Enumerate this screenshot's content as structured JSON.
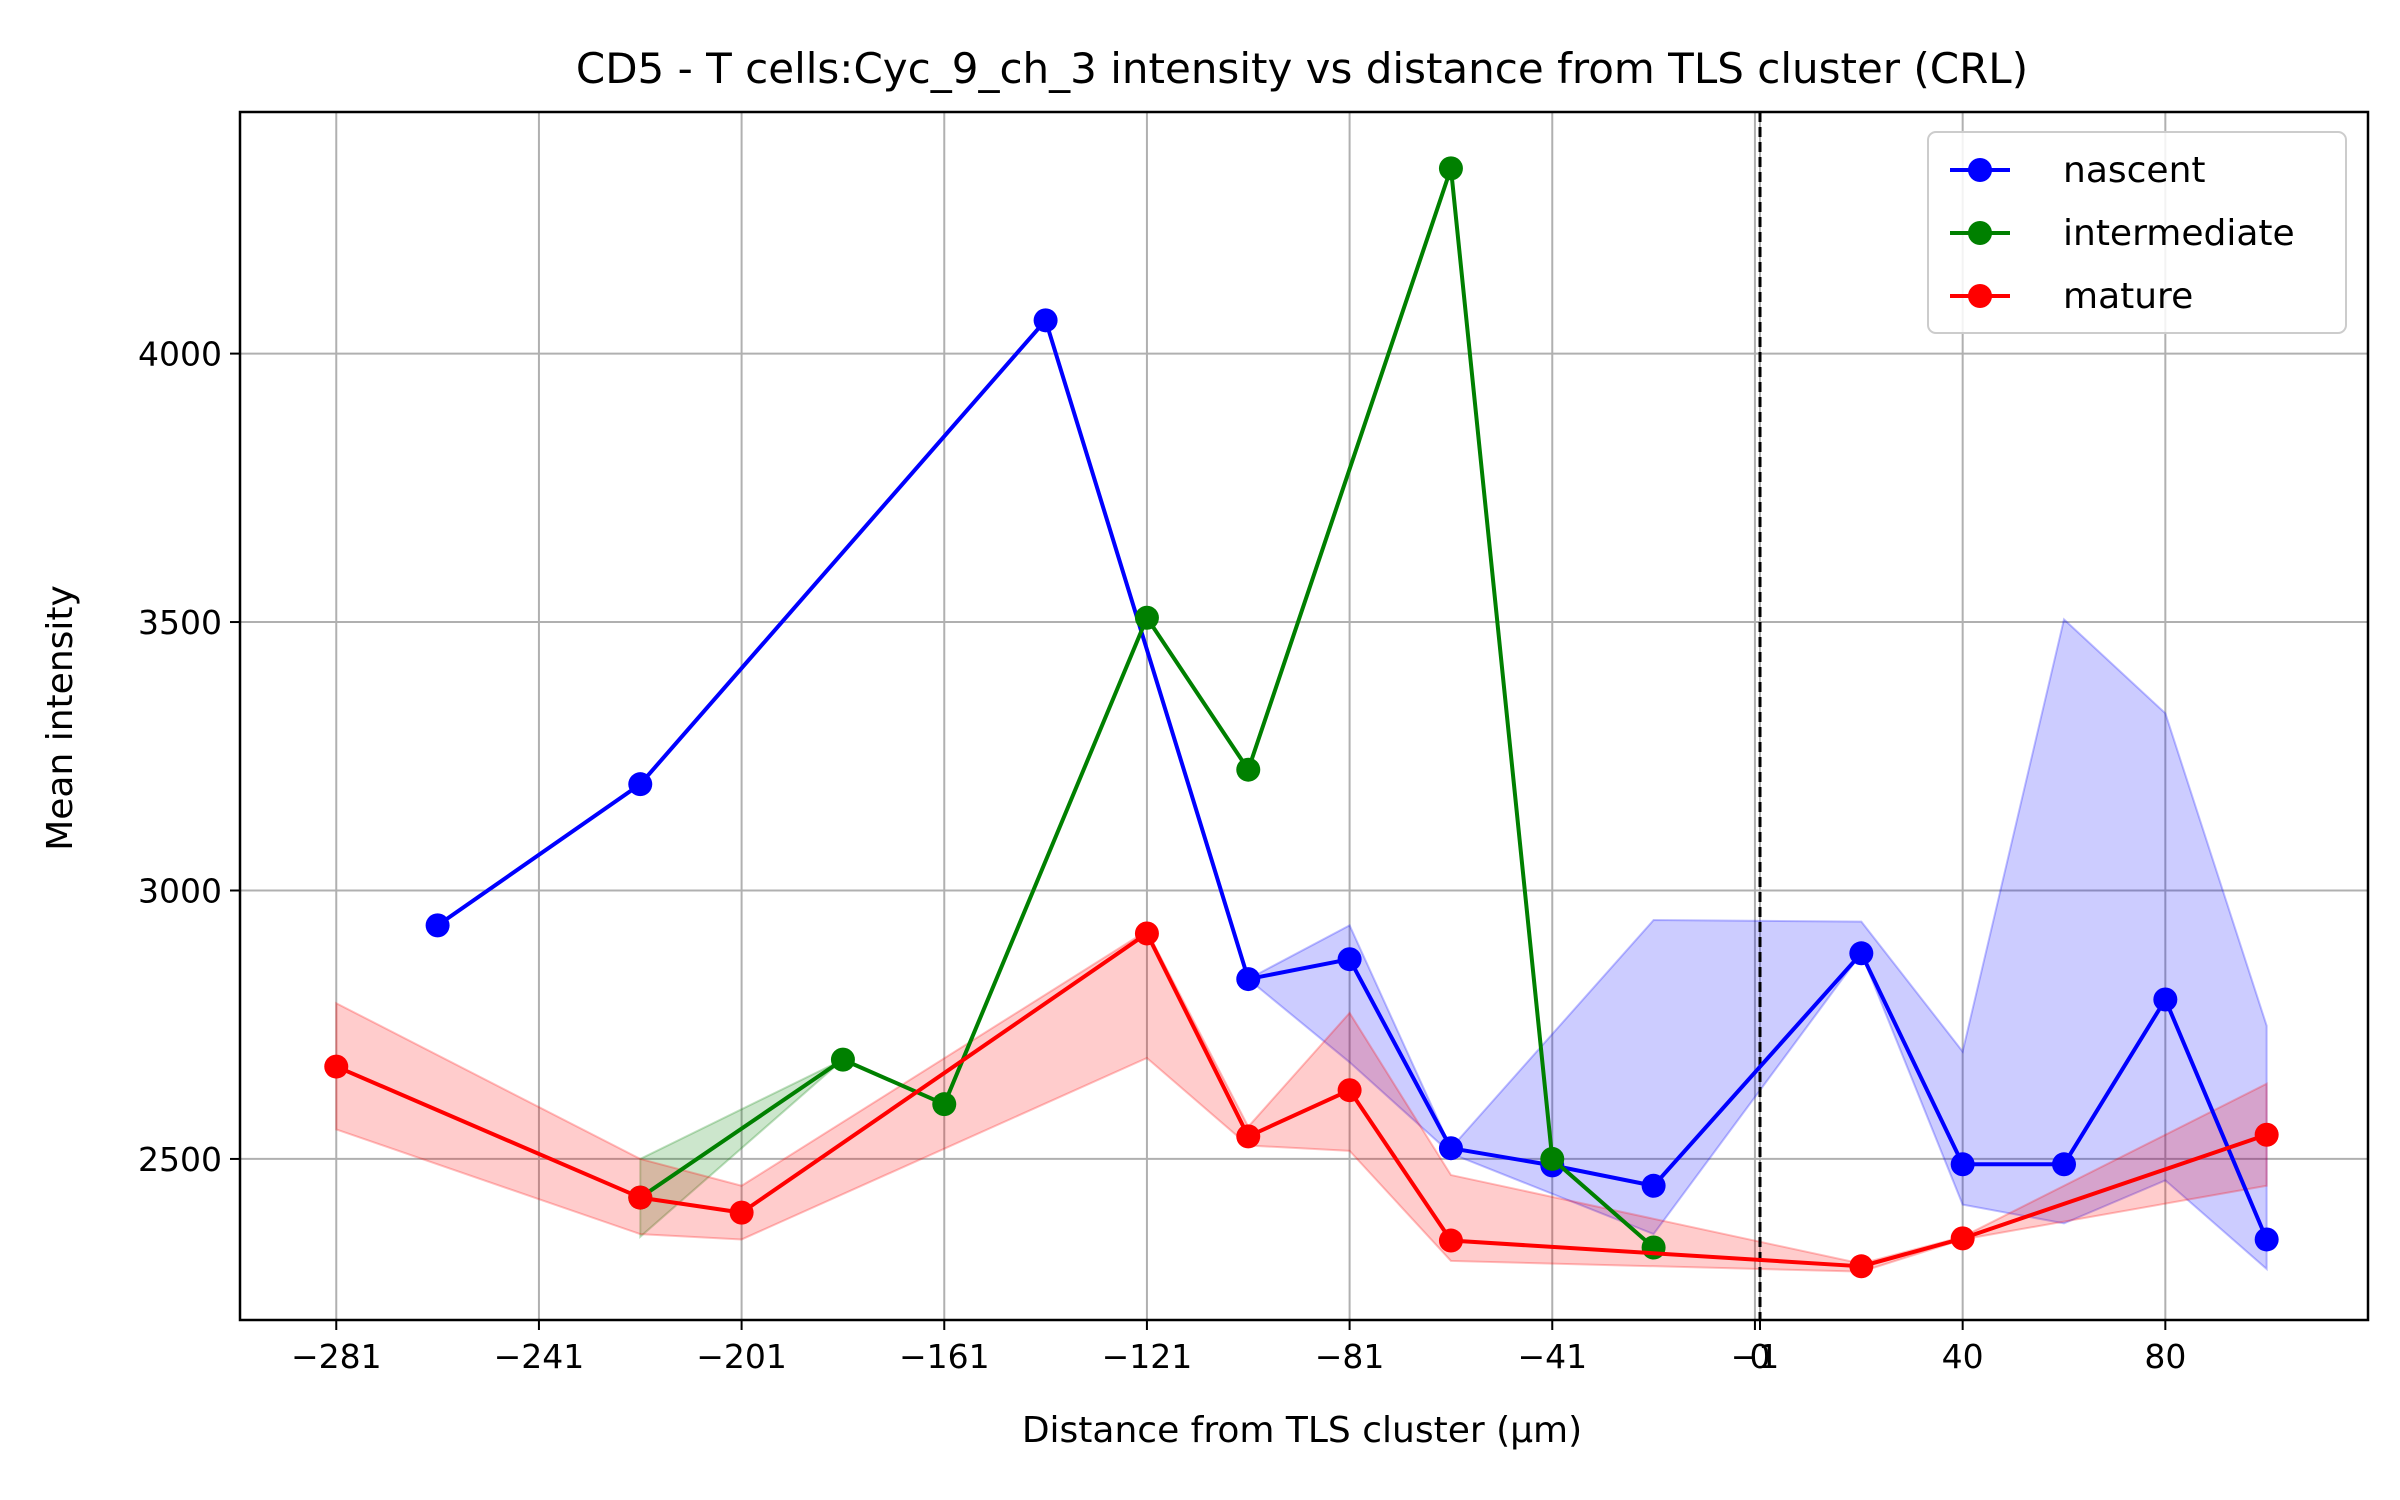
{
  "chart_data": {
    "type": "line",
    "title": "CD5 - T cells:Cyc_9_ch_3 intensity vs distance from TLS cluster (CRL)",
    "xlabel": "Distance from TLS cluster (μm)",
    "ylabel": "Mean intensity",
    "xlim": [
      -300,
      120
    ],
    "ylim": [
      2200,
      4450
    ],
    "x_ticks": [
      {
        "value": -281,
        "label": "−281"
      },
      {
        "value": -241,
        "label": "−241"
      },
      {
        "value": -201,
        "label": "−201"
      },
      {
        "value": -161,
        "label": "−161"
      },
      {
        "value": -121,
        "label": "−121"
      },
      {
        "value": -81,
        "label": "−81"
      },
      {
        "value": -41,
        "label": "−41"
      },
      {
        "value": -1,
        "label": "−1"
      },
      {
        "value": 0,
        "label": "0"
      },
      {
        "value": 40,
        "label": "40"
      },
      {
        "value": 80,
        "label": "80"
      }
    ],
    "y_ticks": [
      2500,
      3000,
      3500,
      4000
    ],
    "grid": true,
    "legend_position": "top-right",
    "vline": {
      "x": 0,
      "style": "dashed",
      "color": "#000000"
    },
    "series": [
      {
        "name": "nascent",
        "color": "#0000ff",
        "x": [
          -261,
          -221,
          -141,
          -101,
          -81,
          -61,
          -41,
          -21,
          20,
          40,
          60,
          80,
          100
        ],
        "y": [
          2935,
          3198,
          4062,
          2835,
          2872,
          2520,
          2488,
          2450,
          2883,
          2490,
          2490,
          2797,
          2350
        ],
        "band": {
          "x": [
            -101,
            -81,
            -61,
            -21,
            20,
            40,
            60,
            80,
            100
          ],
          "lower": [
            2835,
            2680,
            2510,
            2360,
            2883,
            2415,
            2380,
            2460,
            2295
          ],
          "upper": [
            2835,
            2935,
            2520,
            2945,
            2942,
            2700,
            3505,
            3330,
            2748
          ]
        }
      },
      {
        "name": "intermediate",
        "color": "#008000",
        "x": [
          -221,
          -181,
          -161,
          -121,
          -101,
          -61,
          -41,
          -21
        ],
        "y": [
          2428,
          2685,
          2602,
          3508,
          3225,
          4345,
          2500,
          2335
        ],
        "band": {
          "x": [
            -221,
            -181
          ],
          "lower": [
            2355,
            2685
          ],
          "upper": [
            2500,
            2685
          ]
        }
      },
      {
        "name": "mature",
        "color": "#ff0000",
        "x": [
          -281,
          -221,
          -201,
          -121,
          -101,
          -81,
          -61,
          20,
          40,
          100
        ],
        "y": [
          2672,
          2428,
          2400,
          2920,
          2542,
          2628,
          2348,
          2300,
          2352,
          2545
        ],
        "band": {
          "x": [
            -281,
            -221,
            -201,
            -121,
            -101,
            -81,
            -61,
            20,
            40,
            100
          ],
          "lower": [
            2555,
            2360,
            2350,
            2688,
            2525,
            2515,
            2310,
            2290,
            2350,
            2450
          ],
          "upper": [
            2790,
            2500,
            2450,
            2925,
            2560,
            2772,
            2470,
            2305,
            2355,
            2640
          ]
        }
      }
    ]
  }
}
